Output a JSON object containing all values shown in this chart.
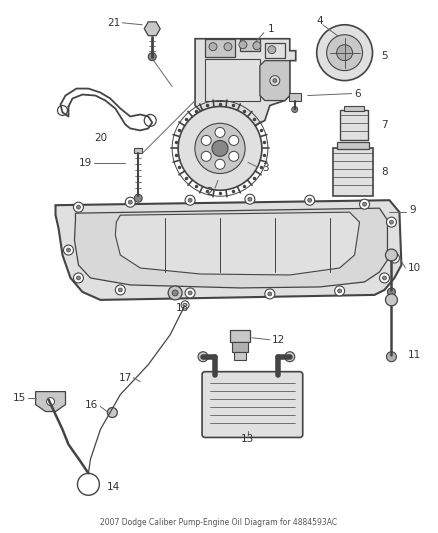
{
  "title": "2007 Dodge Caliber Pump-Engine Oil Diagram for 4884593AC",
  "bg_color": "#ffffff",
  "line_color": "#444444",
  "label_color": "#333333",
  "figsize": [
    4.38,
    5.33
  ],
  "dpi": 100
}
